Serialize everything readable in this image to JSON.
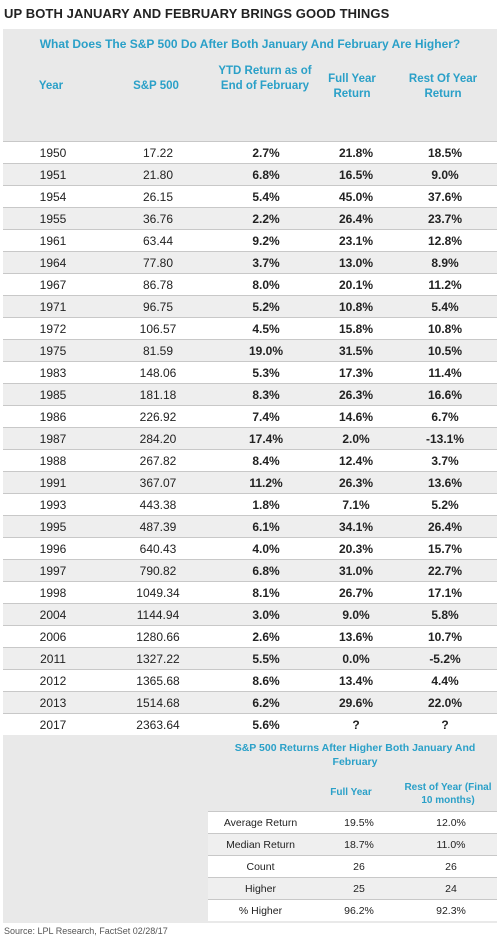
{
  "headline": "UP BOTH JANUARY AND FEBRUARY BRINGS GOOD THINGS",
  "subtitle": "What Does The S&P 500 Do After Both January And February Are Higher?",
  "headers": {
    "year": "Year",
    "sp500": "S&P 500",
    "ytd": "YTD Return as of End of February",
    "full": "Full Year Return",
    "rest": "Rest Of Year Return"
  },
  "rows": [
    {
      "year": "1950",
      "sp": "17.22",
      "ytd": "2.7%",
      "full": "21.8%",
      "rest": "18.5%"
    },
    {
      "year": "1951",
      "sp": "21.80",
      "ytd": "6.8%",
      "full": "16.5%",
      "rest": "9.0%"
    },
    {
      "year": "1954",
      "sp": "26.15",
      "ytd": "5.4%",
      "full": "45.0%",
      "rest": "37.6%"
    },
    {
      "year": "1955",
      "sp": "36.76",
      "ytd": "2.2%",
      "full": "26.4%",
      "rest": "23.7%"
    },
    {
      "year": "1961",
      "sp": "63.44",
      "ytd": "9.2%",
      "full": "23.1%",
      "rest": "12.8%"
    },
    {
      "year": "1964",
      "sp": "77.80",
      "ytd": "3.7%",
      "full": "13.0%",
      "rest": "8.9%"
    },
    {
      "year": "1967",
      "sp": "86.78",
      "ytd": "8.0%",
      "full": "20.1%",
      "rest": "11.2%"
    },
    {
      "year": "1971",
      "sp": "96.75",
      "ytd": "5.2%",
      "full": "10.8%",
      "rest": "5.4%"
    },
    {
      "year": "1972",
      "sp": "106.57",
      "ytd": "4.5%",
      "full": "15.8%",
      "rest": "10.8%"
    },
    {
      "year": "1975",
      "sp": "81.59",
      "ytd": "19.0%",
      "full": "31.5%",
      "rest": "10.5%"
    },
    {
      "year": "1983",
      "sp": "148.06",
      "ytd": "5.3%",
      "full": "17.3%",
      "rest": "11.4%"
    },
    {
      "year": "1985",
      "sp": "181.18",
      "ytd": "8.3%",
      "full": "26.3%",
      "rest": "16.6%"
    },
    {
      "year": "1986",
      "sp": "226.92",
      "ytd": "7.4%",
      "full": "14.6%",
      "rest": "6.7%"
    },
    {
      "year": "1987",
      "sp": "284.20",
      "ytd": "17.4%",
      "full": "2.0%",
      "rest": "-13.1%"
    },
    {
      "year": "1988",
      "sp": "267.82",
      "ytd": "8.4%",
      "full": "12.4%",
      "rest": "3.7%"
    },
    {
      "year": "1991",
      "sp": "367.07",
      "ytd": "11.2%",
      "full": "26.3%",
      "rest": "13.6%"
    },
    {
      "year": "1993",
      "sp": "443.38",
      "ytd": "1.8%",
      "full": "7.1%",
      "rest": "5.2%"
    },
    {
      "year": "1995",
      "sp": "487.39",
      "ytd": "6.1%",
      "full": "34.1%",
      "rest": "26.4%"
    },
    {
      "year": "1996",
      "sp": "640.43",
      "ytd": "4.0%",
      "full": "20.3%",
      "rest": "15.7%"
    },
    {
      "year": "1997",
      "sp": "790.82",
      "ytd": "6.8%",
      "full": "31.0%",
      "rest": "22.7%"
    },
    {
      "year": "1998",
      "sp": "1049.34",
      "ytd": "8.1%",
      "full": "26.7%",
      "rest": "17.1%"
    },
    {
      "year": "2004",
      "sp": "1144.94",
      "ytd": "3.0%",
      "full": "9.0%",
      "rest": "5.8%"
    },
    {
      "year": "2006",
      "sp": "1280.66",
      "ytd": "2.6%",
      "full": "13.6%",
      "rest": "10.7%"
    },
    {
      "year": "2011",
      "sp": "1327.22",
      "ytd": "5.5%",
      "full": "0.0%",
      "rest": "-5.2%"
    },
    {
      "year": "2012",
      "sp": "1365.68",
      "ytd": "8.6%",
      "full": "13.4%",
      "rest": "4.4%"
    },
    {
      "year": "2013",
      "sp": "1514.68",
      "ytd": "6.2%",
      "full": "29.6%",
      "rest": "22.0%"
    },
    {
      "year": "2017",
      "sp": "2363.64",
      "ytd": "5.6%",
      "full": "?",
      "rest": "?"
    }
  ],
  "summary": {
    "title": "S&P 500 Returns After Higher Both January And February",
    "col_full": "Full Year",
    "col_rest": "Rest of Year (Final 10 months)",
    "rows": [
      {
        "label": "Average Return",
        "full": "19.5%",
        "rest": "12.0%"
      },
      {
        "label": "Median Return",
        "full": "18.7%",
        "rest": "11.0%"
      },
      {
        "label": "Count",
        "full": "26",
        "rest": "26"
      },
      {
        "label": "Higher",
        "full": "25",
        "rest": "24"
      },
      {
        "label": "% Higher",
        "full": "96.2%",
        "rest": "92.3%"
      }
    ]
  },
  "source": "Source: LPL Research, FactSet   02/28/17",
  "colors": {
    "accent": "#2aa0c8",
    "positive": "#74b63a",
    "negative": "#d0263e",
    "panel": "#e9e9e9"
  }
}
